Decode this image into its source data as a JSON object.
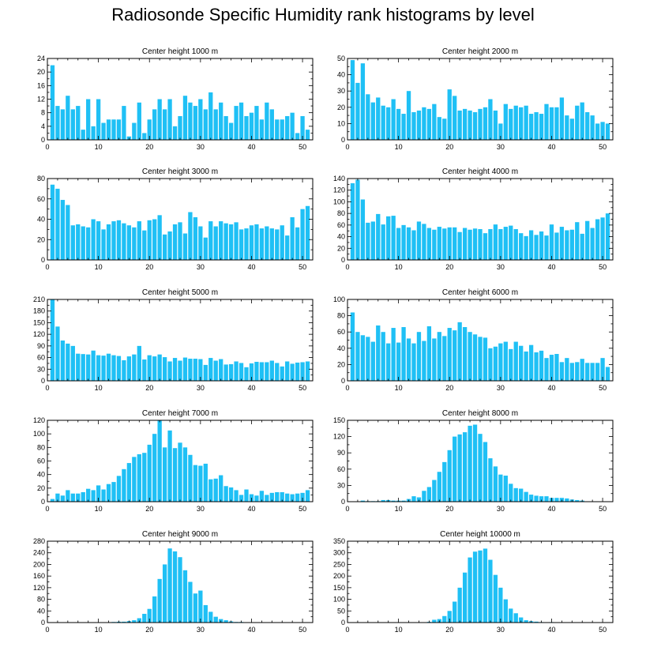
{
  "title": "Radiosonde Specific Humidity rank histograms by level",
  "colors": {
    "bar": "#1fc0f5",
    "axis": "#000000"
  },
  "chart_data": [
    {
      "type": "bar",
      "title": "Center height 1000 m",
      "xlim": [
        0,
        52
      ],
      "ylim": [
        0,
        24
      ],
      "xticks": [
        0,
        10,
        20,
        30,
        40,
        50
      ],
      "yticks": [
        0,
        4,
        8,
        12,
        16,
        20,
        24
      ],
      "x": [
        1,
        2,
        3,
        4,
        5,
        6,
        7,
        8,
        9,
        10,
        11,
        12,
        13,
        14,
        15,
        16,
        17,
        18,
        19,
        20,
        21,
        22,
        23,
        24,
        25,
        26,
        27,
        28,
        29,
        30,
        31,
        32,
        33,
        34,
        35,
        36,
        37,
        38,
        39,
        40,
        41,
        42,
        43,
        44,
        45,
        46,
        47,
        48,
        49,
        50,
        51
      ],
      "values": [
        22,
        10,
        9,
        13,
        9,
        10,
        3,
        12,
        4,
        12,
        5,
        6,
        6,
        6,
        10,
        1,
        5,
        11,
        2,
        6,
        9,
        12,
        9,
        12,
        4,
        7,
        13,
        11,
        10,
        12,
        9,
        14,
        9,
        11,
        7,
        5,
        10,
        11,
        7,
        8,
        10,
        6,
        11,
        9,
        6,
        6,
        7,
        8,
        2,
        7,
        3
      ]
    },
    {
      "type": "bar",
      "title": "Center height 2000 m",
      "xlim": [
        0,
        52
      ],
      "ylim": [
        0,
        50
      ],
      "xticks": [
        0,
        10,
        20,
        30,
        40,
        50
      ],
      "yticks": [
        0,
        10,
        20,
        30,
        40,
        50
      ],
      "x": [
        1,
        2,
        3,
        4,
        5,
        6,
        7,
        8,
        9,
        10,
        11,
        12,
        13,
        14,
        15,
        16,
        17,
        18,
        19,
        20,
        21,
        22,
        23,
        24,
        25,
        26,
        27,
        28,
        29,
        30,
        31,
        32,
        33,
        34,
        35,
        36,
        37,
        38,
        39,
        40,
        41,
        42,
        43,
        44,
        45,
        46,
        47,
        48,
        49,
        50,
        51
      ],
      "values": [
        49,
        35,
        47,
        28,
        23,
        26,
        21,
        20,
        25,
        19,
        16,
        30,
        17,
        18,
        20,
        19,
        22,
        14,
        13,
        31,
        27,
        18,
        19,
        18,
        17,
        19,
        20,
        25,
        18,
        10,
        22,
        19,
        21,
        20,
        21,
        16,
        17,
        16,
        22,
        20,
        20,
        26,
        15,
        13,
        21,
        23,
        17,
        15,
        10,
        11,
        10
      ]
    },
    {
      "type": "bar",
      "title": "Center height 3000 m",
      "xlim": [
        0,
        52
      ],
      "ylim": [
        0,
        80
      ],
      "xticks": [
        0,
        10,
        20,
        30,
        40,
        50
      ],
      "yticks": [
        0,
        20,
        40,
        60,
        80
      ],
      "x": [
        1,
        2,
        3,
        4,
        5,
        6,
        7,
        8,
        9,
        10,
        11,
        12,
        13,
        14,
        15,
        16,
        17,
        18,
        19,
        20,
        21,
        22,
        23,
        24,
        25,
        26,
        27,
        28,
        29,
        30,
        31,
        32,
        33,
        34,
        35,
        36,
        37,
        38,
        39,
        40,
        41,
        42,
        43,
        44,
        45,
        46,
        47,
        48,
        49,
        50,
        51
      ],
      "values": [
        74,
        70,
        59,
        54,
        34,
        35,
        33,
        32,
        40,
        38,
        30,
        35,
        38,
        39,
        36,
        34,
        32,
        38,
        29,
        39,
        40,
        44,
        25,
        28,
        35,
        37,
        26,
        47,
        42,
        33,
        22,
        38,
        33,
        38,
        36,
        35,
        37,
        30,
        31,
        34,
        35,
        31,
        33,
        31,
        30,
        34,
        24,
        42,
        32,
        50,
        53
      ]
    },
    {
      "type": "bar",
      "title": "Center height 4000 m",
      "xlim": [
        0,
        52
      ],
      "ylim": [
        0,
        140
      ],
      "xticks": [
        0,
        10,
        20,
        30,
        40,
        50
      ],
      "yticks": [
        0,
        20,
        40,
        60,
        80,
        100,
        120,
        140
      ],
      "x": [
        1,
        2,
        3,
        4,
        5,
        6,
        7,
        8,
        9,
        10,
        11,
        12,
        13,
        14,
        15,
        16,
        17,
        18,
        19,
        20,
        21,
        22,
        23,
        24,
        25,
        26,
        27,
        28,
        29,
        30,
        31,
        32,
        33,
        34,
        35,
        36,
        37,
        38,
        39,
        40,
        41,
        42,
        43,
        44,
        45,
        46,
        47,
        48,
        49,
        50,
        51
      ],
      "values": [
        132,
        138,
        104,
        64,
        66,
        79,
        61,
        75,
        76,
        55,
        60,
        56,
        51,
        66,
        62,
        55,
        52,
        57,
        54,
        56,
        56,
        48,
        55,
        52,
        54,
        53,
        46,
        53,
        61,
        53,
        57,
        59,
        53,
        46,
        41,
        51,
        43,
        49,
        42,
        61,
        47,
        57,
        51,
        52,
        65,
        45,
        67,
        55,
        70,
        73,
        80
      ]
    },
    {
      "type": "bar",
      "title": "Center height 5000 m",
      "xlim": [
        0,
        52
      ],
      "ylim": [
        0,
        210
      ],
      "xticks": [
        0,
        10,
        20,
        30,
        40,
        50
      ],
      "yticks": [
        0,
        30,
        60,
        90,
        120,
        150,
        180,
        210
      ],
      "x": [
        1,
        2,
        3,
        4,
        5,
        6,
        7,
        8,
        9,
        10,
        11,
        12,
        13,
        14,
        15,
        16,
        17,
        18,
        19,
        20,
        21,
        22,
        23,
        24,
        25,
        26,
        27,
        28,
        29,
        30,
        31,
        32,
        33,
        34,
        35,
        36,
        37,
        38,
        39,
        40,
        41,
        42,
        43,
        44,
        45,
        46,
        47,
        48,
        49,
        50,
        51
      ],
      "values": [
        210,
        140,
        104,
        96,
        90,
        70,
        69,
        68,
        78,
        66,
        65,
        70,
        66,
        64,
        53,
        63,
        68,
        90,
        55,
        66,
        63,
        68,
        61,
        50,
        59,
        52,
        60,
        57,
        57,
        56,
        41,
        59,
        52,
        56,
        42,
        43,
        50,
        46,
        35,
        45,
        49,
        48,
        48,
        52,
        46,
        37,
        50,
        44,
        47,
        48,
        50
      ]
    },
    {
      "type": "bar",
      "title": "Center height 6000 m",
      "xlim": [
        0,
        52
      ],
      "ylim": [
        0,
        100
      ],
      "xticks": [
        0,
        10,
        20,
        30,
        40,
        50
      ],
      "yticks": [
        0,
        20,
        40,
        60,
        80,
        100
      ],
      "x": [
        1,
        2,
        3,
        4,
        5,
        6,
        7,
        8,
        9,
        10,
        11,
        12,
        13,
        14,
        15,
        16,
        17,
        18,
        19,
        20,
        21,
        22,
        23,
        24,
        25,
        26,
        27,
        28,
        29,
        30,
        31,
        32,
        33,
        34,
        35,
        36,
        37,
        38,
        39,
        40,
        41,
        42,
        43,
        44,
        45,
        46,
        47,
        48,
        49,
        50,
        51
      ],
      "values": [
        84,
        60,
        56,
        54,
        48,
        68,
        60,
        46,
        65,
        47,
        66,
        52,
        46,
        60,
        49,
        67,
        52,
        60,
        55,
        65,
        62,
        72,
        66,
        60,
        57,
        54,
        53,
        40,
        42,
        46,
        48,
        39,
        48,
        43,
        36,
        44,
        35,
        37,
        28,
        32,
        33,
        23,
        28,
        22,
        23,
        27,
        22,
        22,
        22,
        28,
        17
      ]
    },
    {
      "type": "bar",
      "title": "Center height 7000 m",
      "xlim": [
        0,
        52
      ],
      "ylim": [
        0,
        120
      ],
      "xticks": [
        0,
        10,
        20,
        30,
        40,
        50
      ],
      "yticks": [
        0,
        20,
        40,
        60,
        80,
        100,
        120
      ],
      "x": [
        1,
        2,
        3,
        4,
        5,
        6,
        7,
        8,
        9,
        10,
        11,
        12,
        13,
        14,
        15,
        16,
        17,
        18,
        19,
        20,
        21,
        22,
        23,
        24,
        25,
        26,
        27,
        28,
        29,
        30,
        31,
        32,
        33,
        34,
        35,
        36,
        37,
        38,
        39,
        40,
        41,
        42,
        43,
        44,
        45,
        46,
        47,
        48,
        49,
        50,
        51
      ],
      "values": [
        4,
        12,
        9,
        17,
        12,
        12,
        14,
        19,
        17,
        24,
        18,
        26,
        29,
        38,
        48,
        57,
        66,
        70,
        72,
        84,
        100,
        120,
        80,
        105,
        79,
        87,
        80,
        69,
        54,
        53,
        56,
        33,
        34,
        39,
        23,
        21,
        17,
        10,
        18,
        11,
        9,
        16,
        10,
        13,
        14,
        14,
        12,
        11,
        12,
        13,
        17
      ]
    },
    {
      "type": "bar",
      "title": "Center height 8000 m",
      "xlim": [
        0,
        52
      ],
      "ylim": [
        0,
        150
      ],
      "xticks": [
        0,
        10,
        20,
        30,
        40,
        50
      ],
      "yticks": [
        0,
        30,
        60,
        90,
        120,
        150
      ],
      "x": [
        1,
        2,
        3,
        4,
        5,
        6,
        7,
        8,
        9,
        10,
        11,
        12,
        13,
        14,
        15,
        16,
        17,
        18,
        19,
        20,
        21,
        22,
        23,
        24,
        25,
        26,
        27,
        28,
        29,
        30,
        31,
        32,
        33,
        34,
        35,
        36,
        37,
        38,
        39,
        40,
        41,
        42,
        43,
        44,
        45,
        46,
        47,
        48,
        49,
        50,
        51
      ],
      "values": [
        0,
        0,
        2,
        1,
        1,
        1,
        3,
        3,
        2,
        2,
        2,
        5,
        10,
        8,
        20,
        27,
        40,
        55,
        73,
        95,
        120,
        124,
        128,
        140,
        142,
        125,
        110,
        80,
        65,
        50,
        48,
        33,
        25,
        24,
        18,
        13,
        11,
        10,
        10,
        7,
        7,
        7,
        6,
        4,
        3,
        2,
        0,
        0,
        0,
        0,
        0
      ]
    },
    {
      "type": "bar",
      "title": "Center height 9000 m",
      "xlim": [
        0,
        52
      ],
      "ylim": [
        0,
        280
      ],
      "xticks": [
        0,
        10,
        20,
        30,
        40,
        50
      ],
      "yticks": [
        0,
        40,
        80,
        120,
        160,
        200,
        240,
        280
      ],
      "x": [
        1,
        2,
        3,
        4,
        5,
        6,
        7,
        8,
        9,
        10,
        11,
        12,
        13,
        14,
        15,
        16,
        17,
        18,
        19,
        20,
        21,
        22,
        23,
        24,
        25,
        26,
        27,
        28,
        29,
        30,
        31,
        32,
        33,
        34,
        35,
        36,
        37,
        38,
        39,
        40,
        41,
        42,
        43,
        44,
        45,
        46,
        47,
        48,
        49,
        50,
        51
      ],
      "values": [
        0,
        0,
        0,
        0,
        0,
        0,
        0,
        0,
        0,
        0,
        0,
        1,
        2,
        3,
        3,
        5,
        8,
        15,
        30,
        47,
        90,
        150,
        200,
        255,
        245,
        225,
        180,
        140,
        100,
        110,
        60,
        37,
        20,
        12,
        8,
        4,
        2,
        2,
        1,
        1,
        0,
        0,
        0,
        0,
        0,
        0,
        0,
        0,
        0,
        0,
        0
      ]
    },
    {
      "type": "bar",
      "title": "Center height 10000 m",
      "xlim": [
        0,
        52
      ],
      "ylim": [
        0,
        350
      ],
      "xticks": [
        0,
        10,
        20,
        30,
        40,
        50
      ],
      "yticks": [
        0,
        50,
        100,
        150,
        200,
        250,
        300,
        350
      ],
      "x": [
        1,
        2,
        3,
        4,
        5,
        6,
        7,
        8,
        9,
        10,
        11,
        12,
        13,
        14,
        15,
        16,
        17,
        18,
        19,
        20,
        21,
        22,
        23,
        24,
        25,
        26,
        27,
        28,
        29,
        30,
        31,
        32,
        33,
        34,
        35,
        36,
        37,
        38,
        39,
        40,
        41,
        42,
        43,
        44,
        45,
        46,
        47,
        48,
        49,
        50,
        51
      ],
      "values": [
        0,
        0,
        0,
        0,
        0,
        0,
        0,
        0,
        0,
        0,
        0,
        0,
        0,
        1,
        1,
        3,
        12,
        15,
        28,
        50,
        90,
        150,
        215,
        280,
        305,
        310,
        318,
        270,
        205,
        150,
        100,
        60,
        40,
        22,
        10,
        6,
        4,
        2,
        1,
        2,
        0,
        0,
        1,
        1,
        0,
        0,
        0,
        0,
        0,
        0,
        0
      ]
    }
  ]
}
